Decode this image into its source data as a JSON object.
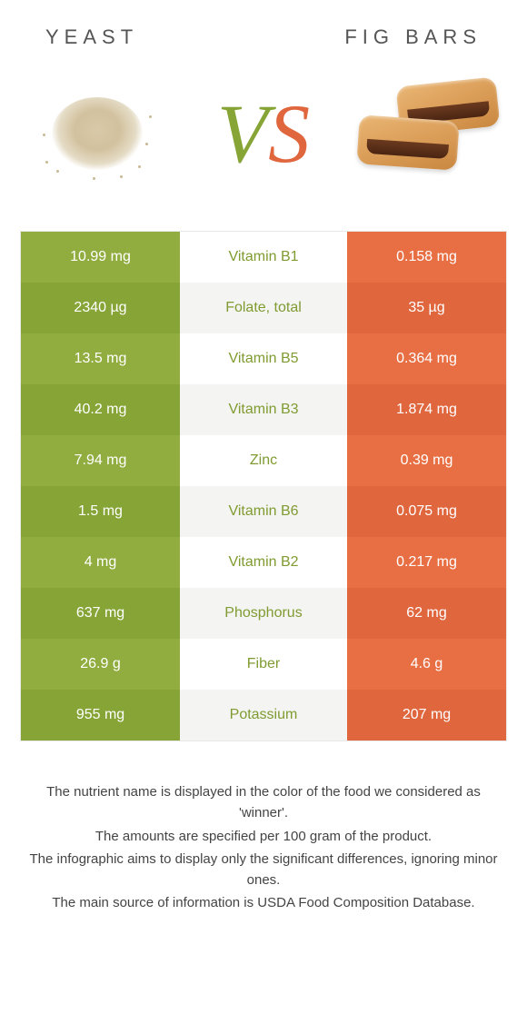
{
  "colors": {
    "left_bg_a": "#91ad3f",
    "left_bg_b": "#86a536",
    "right_bg_a": "#e86f44",
    "right_bg_b": "#e0663e",
    "nutrient_winner_left": "#7f9b31",
    "nutrient_winner_right": "#e0663e"
  },
  "header": {
    "left": "YEAST",
    "right": "FIG BARS"
  },
  "vs": {
    "v": "V",
    "s": "S"
  },
  "rows": [
    {
      "left": "10.99 mg",
      "name": "Vitamin B1",
      "right": "0.158 mg",
      "winner": "left"
    },
    {
      "left": "2340 µg",
      "name": "Folate, total",
      "right": "35 µg",
      "winner": "left"
    },
    {
      "left": "13.5 mg",
      "name": "Vitamin B5",
      "right": "0.364 mg",
      "winner": "left"
    },
    {
      "left": "40.2 mg",
      "name": "Vitamin B3",
      "right": "1.874 mg",
      "winner": "left"
    },
    {
      "left": "7.94 mg",
      "name": "Zinc",
      "right": "0.39 mg",
      "winner": "left"
    },
    {
      "left": "1.5 mg",
      "name": "Vitamin B6",
      "right": "0.075 mg",
      "winner": "left"
    },
    {
      "left": "4 mg",
      "name": "Vitamin B2",
      "right": "0.217 mg",
      "winner": "left"
    },
    {
      "left": "637 mg",
      "name": "Phosphorus",
      "right": "62 mg",
      "winner": "left"
    },
    {
      "left": "26.9 g",
      "name": "Fiber",
      "right": "4.6 g",
      "winner": "left"
    },
    {
      "left": "955 mg",
      "name": "Potassium",
      "right": "207 mg",
      "winner": "left"
    }
  ],
  "footnote": {
    "l1": "The nutrient name is displayed in the color of the food we considered as 'winner'.",
    "l2": "The amounts are specified per 100 gram of the product.",
    "l3": "The infographic aims to display only the significant differences, ignoring minor ones.",
    "l4": "The main source of information is USDA Food Composition Database."
  }
}
